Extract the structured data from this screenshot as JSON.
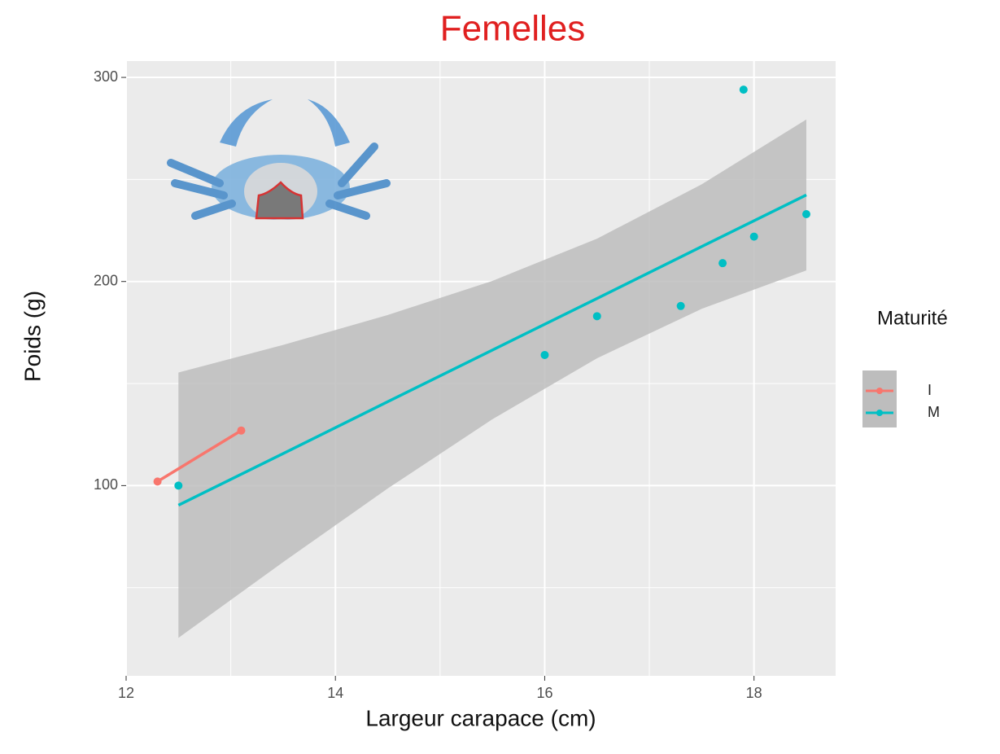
{
  "chart_data": {
    "type": "scatter",
    "title": "Femelles",
    "title_color": "#e02020",
    "x_label": "Largeur carapace (cm)",
    "y_label": "Poids (g)",
    "legend_title": "Maturité",
    "legend_position": "right",
    "xlim": [
      12,
      18.78
    ],
    "ylim": [
      6.8,
      308
    ],
    "xticks": [
      12,
      14,
      16,
      18
    ],
    "yticks": [
      100,
      200,
      300
    ],
    "x_minor_ticks": [
      13,
      15,
      17
    ],
    "y_minor_ticks": [
      50,
      150,
      250
    ],
    "grid": true,
    "band_color": "#bdbdbd",
    "series": [
      {
        "name": "I",
        "color": "#F8766D",
        "x": [
          12.3,
          13.1
        ],
        "values": [
          102,
          127
        ],
        "fit_x": [
          12.3,
          13.1
        ],
        "fit_values": [
          102,
          127
        ]
      },
      {
        "name": "M",
        "color": "#00BFC4",
        "x": [
          12.5,
          16,
          16.5,
          17.3,
          17.7,
          18,
          17.9,
          18.5
        ],
        "values": [
          100,
          164,
          183,
          188,
          209,
          222,
          294,
          233
        ],
        "fit_x": [
          12.5,
          13.5,
          14.5,
          15.5,
          16.5,
          17.5,
          18.5
        ],
        "fit_values": [
          90.4,
          115.7,
          141.1,
          166.4,
          191.7,
          217.1,
          242.4
        ],
        "band_upper": [
          155.4,
          168.9,
          183.6,
          200.3,
          221,
          247.6,
          279.4
        ],
        "band_lower": [
          25.4,
          62.5,
          98.6,
          132.5,
          162.4,
          186.6,
          205.4
        ]
      }
    ]
  }
}
